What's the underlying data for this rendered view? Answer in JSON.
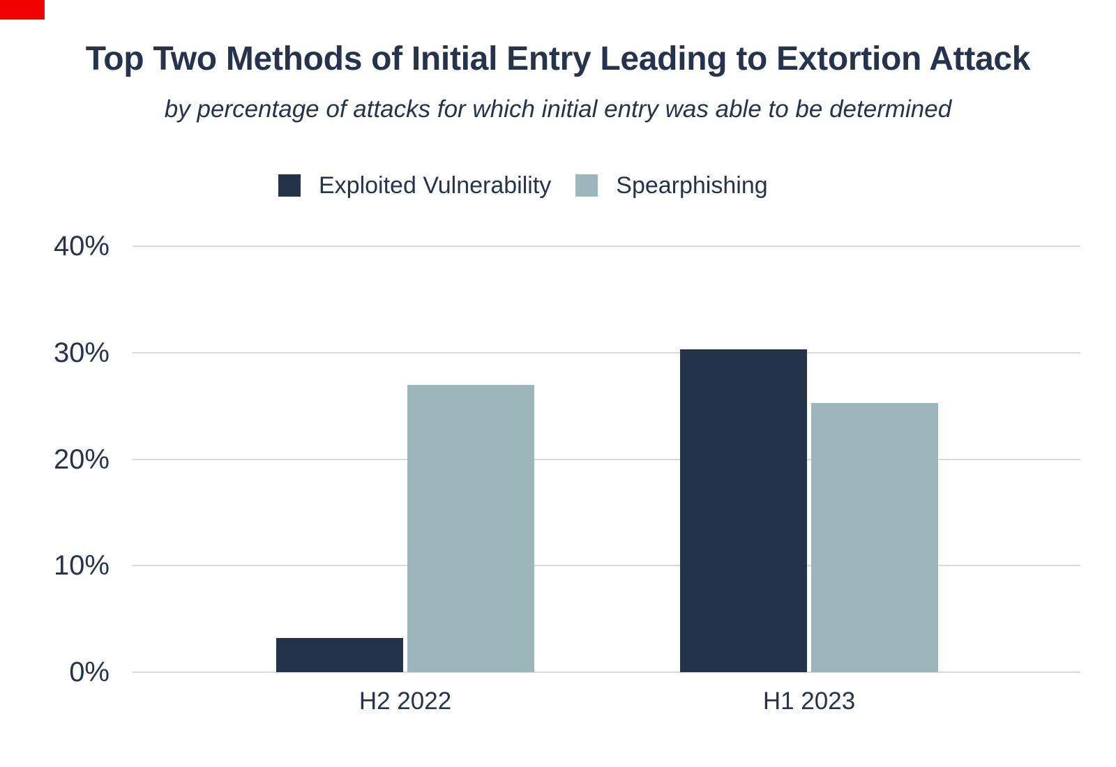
{
  "header": {
    "title": "Top Two Methods of Initial Entry Leading to Extortion Attack",
    "subtitle": "by percentage of attacks for which initial entry was able to be determined"
  },
  "colors": {
    "text_navy": "#25334D",
    "bar_dark_navy": "#253349",
    "bar_light_blue": "#9CB6BC",
    "gridline_gray": "#D9D9D9",
    "corner_marker_red": "#F20000",
    "background": "#FFFFFF"
  },
  "chart_data": {
    "type": "bar",
    "title": "Top Two Methods of Initial Entry Leading to Extortion Attack",
    "subtitle": "by percentage of attacks for which initial entry was able to be determined",
    "categories": [
      "H2 2022",
      "H1 2023"
    ],
    "series": [
      {
        "name": "Exploited Vulnerability",
        "color": "#253349",
        "values": [
          3.2,
          30.3
        ]
      },
      {
        "name": "Spearphishing",
        "color": "#9CB6BC",
        "values": [
          27.0,
          25.3
        ]
      }
    ],
    "xlabel": "",
    "ylabel": "",
    "ylim": [
      0,
      40
    ],
    "yticks": [
      {
        "value": 0,
        "label": "0%"
      },
      {
        "value": 10,
        "label": "10%"
      },
      {
        "value": 20,
        "label": "20%"
      },
      {
        "value": 30,
        "label": "30%"
      },
      {
        "value": 40,
        "label": "40%"
      }
    ],
    "grid": "horizontal",
    "legend_position": "top-center"
  }
}
